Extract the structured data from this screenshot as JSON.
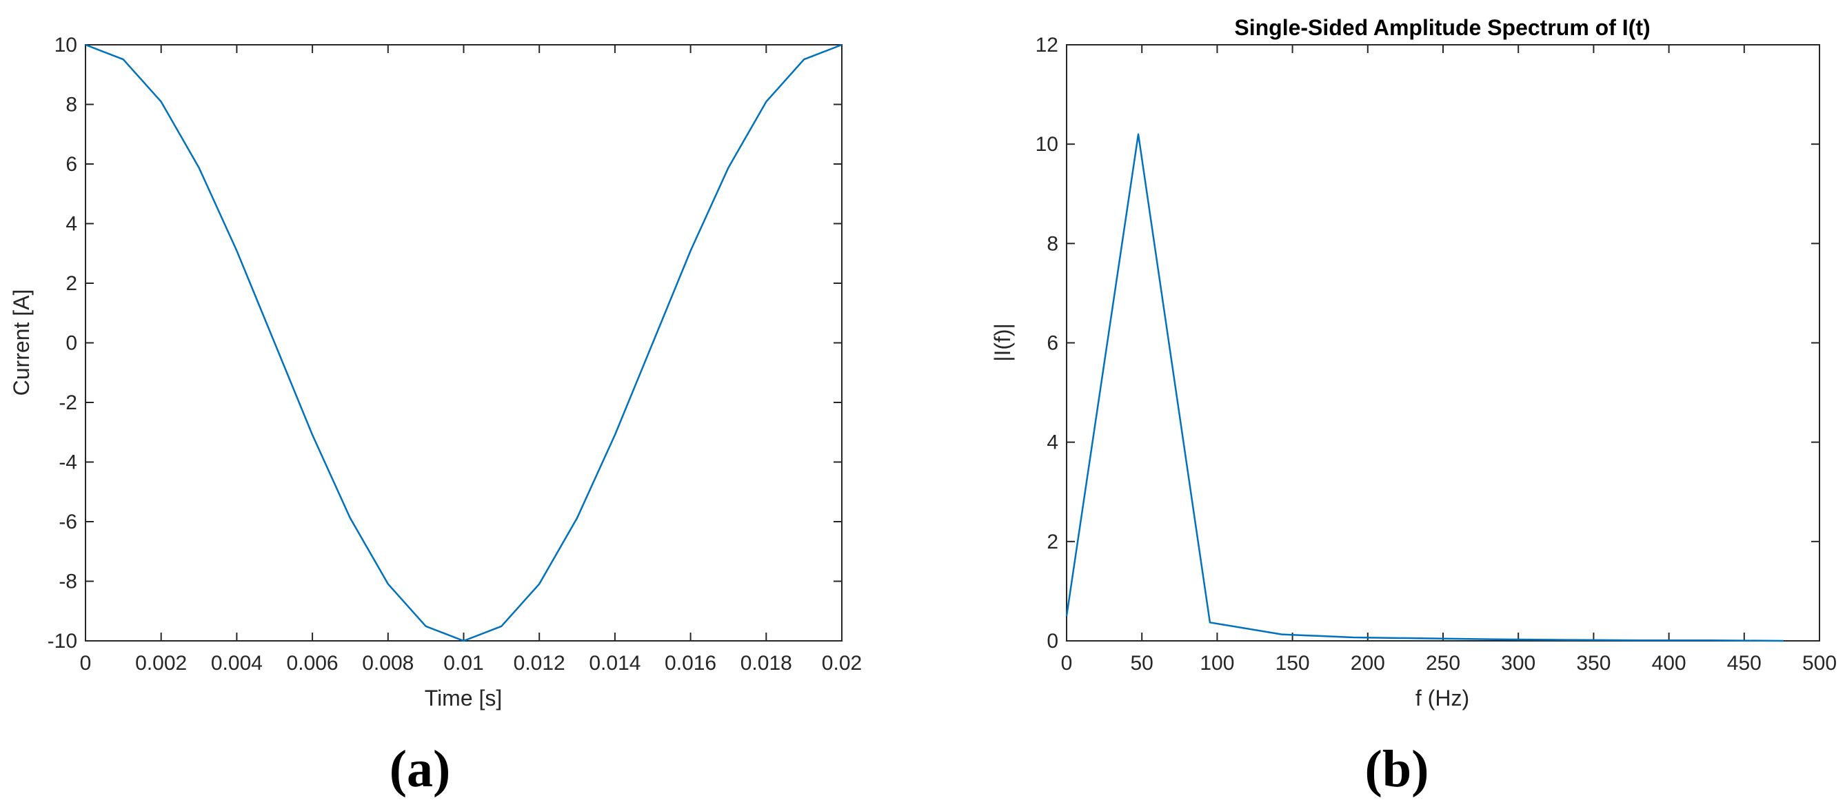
{
  "chart_data": [
    {
      "type": "line",
      "title": "",
      "panel_label": "(a)",
      "xlabel": "Time [s]",
      "ylabel": "Current [A]",
      "xlim": [
        0,
        0.02
      ],
      "ylim": [
        -10,
        10
      ],
      "x_ticks": [
        "0",
        "0.002",
        "0.004",
        "0.006",
        "0.008",
        "0.01",
        "0.012",
        "0.014",
        "0.016",
        "0.018",
        "0.02"
      ],
      "y_ticks": [
        "-10",
        "-8",
        "-6",
        "-4",
        "-2",
        "0",
        "2",
        "4",
        "6",
        "8",
        "10"
      ],
      "grid": false,
      "line_color": "#0072BD",
      "series": [
        {
          "x": [
            0,
            0.001,
            0.002,
            0.003,
            0.004,
            0.005,
            0.006,
            0.007,
            0.008,
            0.009,
            0.01,
            0.011,
            0.012,
            0.013,
            0.014,
            0.015,
            0.016,
            0.017,
            0.018,
            0.019,
            0.02
          ],
          "values": [
            10,
            9.51,
            8.09,
            5.88,
            3.09,
            0,
            -3.09,
            -5.88,
            -8.09,
            -9.51,
            -10,
            -9.51,
            -8.09,
            -5.88,
            -3.09,
            0,
            3.09,
            5.88,
            8.09,
            9.51,
            10
          ]
        }
      ]
    },
    {
      "type": "line",
      "title": "Single-Sided Amplitude Spectrum of I(t)",
      "panel_label": "(b)",
      "xlabel": "f (Hz)",
      "ylabel": "|I(f)|",
      "xlim": [
        0,
        500
      ],
      "ylim": [
        0,
        12
      ],
      "x_ticks": [
        "0",
        "50",
        "100",
        "150",
        "200",
        "250",
        "300",
        "350",
        "400",
        "450",
        "500"
      ],
      "y_ticks": [
        "0",
        "2",
        "4",
        "6",
        "8",
        "10",
        "12"
      ],
      "grid": false,
      "line_color": "#0072BD",
      "series": [
        {
          "x": [
            0,
            47.6,
            95.2,
            142.9,
            190.5,
            238.1,
            285.7,
            333.3,
            381,
            428.6,
            476.2
          ],
          "values": [
            0.5,
            10.2,
            0.37,
            0.13,
            0.07,
            0.05,
            0.03,
            0.02,
            0.01,
            0.01,
            0
          ]
        }
      ]
    }
  ]
}
